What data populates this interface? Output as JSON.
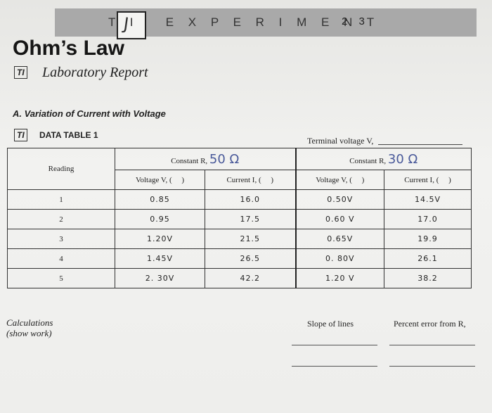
{
  "header": {
    "check_mark": "J",
    "experiment_label": "T I   E X P E R I M E N T",
    "experiment_number": "2 3"
  },
  "title": "Ohm’s Law",
  "ti_badge": "TI",
  "subtitle": "Laboratory Report",
  "section_heading": "A. Variation of Current with Voltage",
  "data_table_title": "DATA TABLE 1",
  "terminal_voltage_label": "Terminal voltage V,",
  "table": {
    "reading_header": "Reading",
    "constant_label": "Constant R,",
    "constant_label_2": "Constant R,",
    "r1_value": "50 Ω",
    "r2_value": "30 Ω",
    "voltage_header": "Voltage V, (     )",
    "current_header": "Current I, (     )",
    "voltage_header_2": "Voltage V, (     )",
    "current_header_2": "Current I, (     )",
    "rows": [
      {
        "reading": "1",
        "v1": "0.85",
        "i1": "16.0",
        "v2": "0.50V",
        "i2": "14.5V"
      },
      {
        "reading": "2",
        "v1": "0.95",
        "i1": "17.5",
        "v2": "0.60 V",
        "i2": "17.0"
      },
      {
        "reading": "3",
        "v1": "1.20V",
        "i1": "21.5",
        "v2": "0.65V",
        "i2": "19.9"
      },
      {
        "reading": "4",
        "v1": "1.45V",
        "i1": "26.5",
        "v2": "0. 80V",
        "i2": "26.1"
      },
      {
        "reading": "5",
        "v1": "2. 30V",
        "i1": "42.2",
        "v2": "1.20 V",
        "i2": "38.2"
      }
    ]
  },
  "calculations_label": "Calculations",
  "show_work_label": "(show work)",
  "slope_label": "Slope of lines",
  "percent_error_label": "Percent error from R,"
}
